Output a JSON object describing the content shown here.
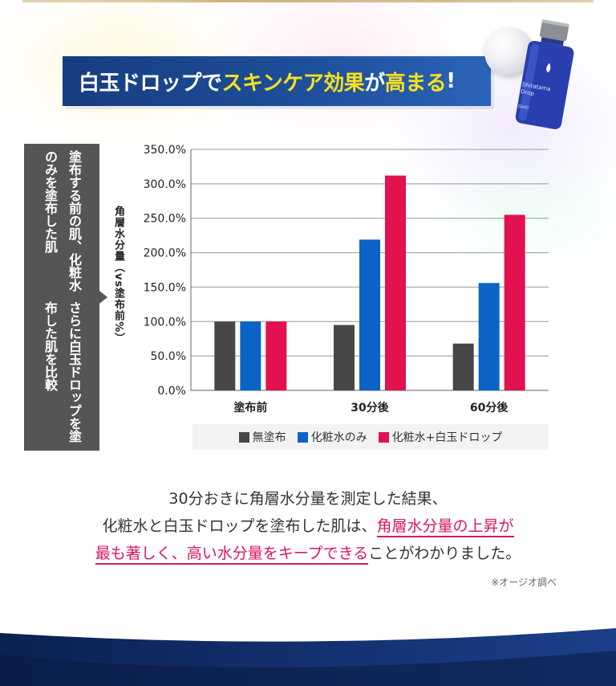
{
  "headline": {
    "part1": "白玉ドロップで",
    "part2": "スキンケア効果",
    "part3": "が",
    "part4": "高まる",
    "part5": "!"
  },
  "product": {
    "label_line1": "Shiratama",
    "label_line2": "Drop",
    "brand_mark": "GIHO"
  },
  "side_panel": {
    "line1": "塗布する前の肌、化粧水のみを塗布した肌",
    "line2": "さらに白玉ドロップを塗布した肌を比較"
  },
  "chart_data": {
    "type": "bar",
    "title": "",
    "ylabel": "角層水分量（vs塗布前%）",
    "xlabel": "",
    "ylim": [
      0,
      350
    ],
    "yticks": [
      "0.0%",
      "50.0%",
      "100.0%",
      "150.0%",
      "200.0%",
      "250.0%",
      "300.0%",
      "350.0%"
    ],
    "grid": true,
    "legend_position": "bottom",
    "categories": [
      "塗布前",
      "30分後",
      "60分後"
    ],
    "series": [
      {
        "name": "無塗布",
        "color": "#474747",
        "values": [
          100,
          95,
          68
        ]
      },
      {
        "name": "化粧水のみ",
        "color": "#0b63c6",
        "values": [
          100,
          219,
          156
        ]
      },
      {
        "name": "化粧水+白玉ドロップ",
        "color": "#e2114f",
        "values": [
          100,
          312,
          255
        ]
      }
    ]
  },
  "body_text": {
    "line1": "30分おきに角層水分量を測定した結果、",
    "line2_a": "化粧水と白玉ドロップを塗布した肌は、",
    "line2_b": "角層水分量の上昇が",
    "line3_a": "最も著しく、高い水分量をキープできる",
    "line3_b": "ことがわかりました。"
  },
  "note": "※オージオ調べ",
  "colors": {
    "headline_bg": "#1d4e9a",
    "accent_yellow": "#f7e11e",
    "accent_pink": "#d8185e",
    "panel_gray": "#555555",
    "bottom_navy": "#0d2657"
  }
}
